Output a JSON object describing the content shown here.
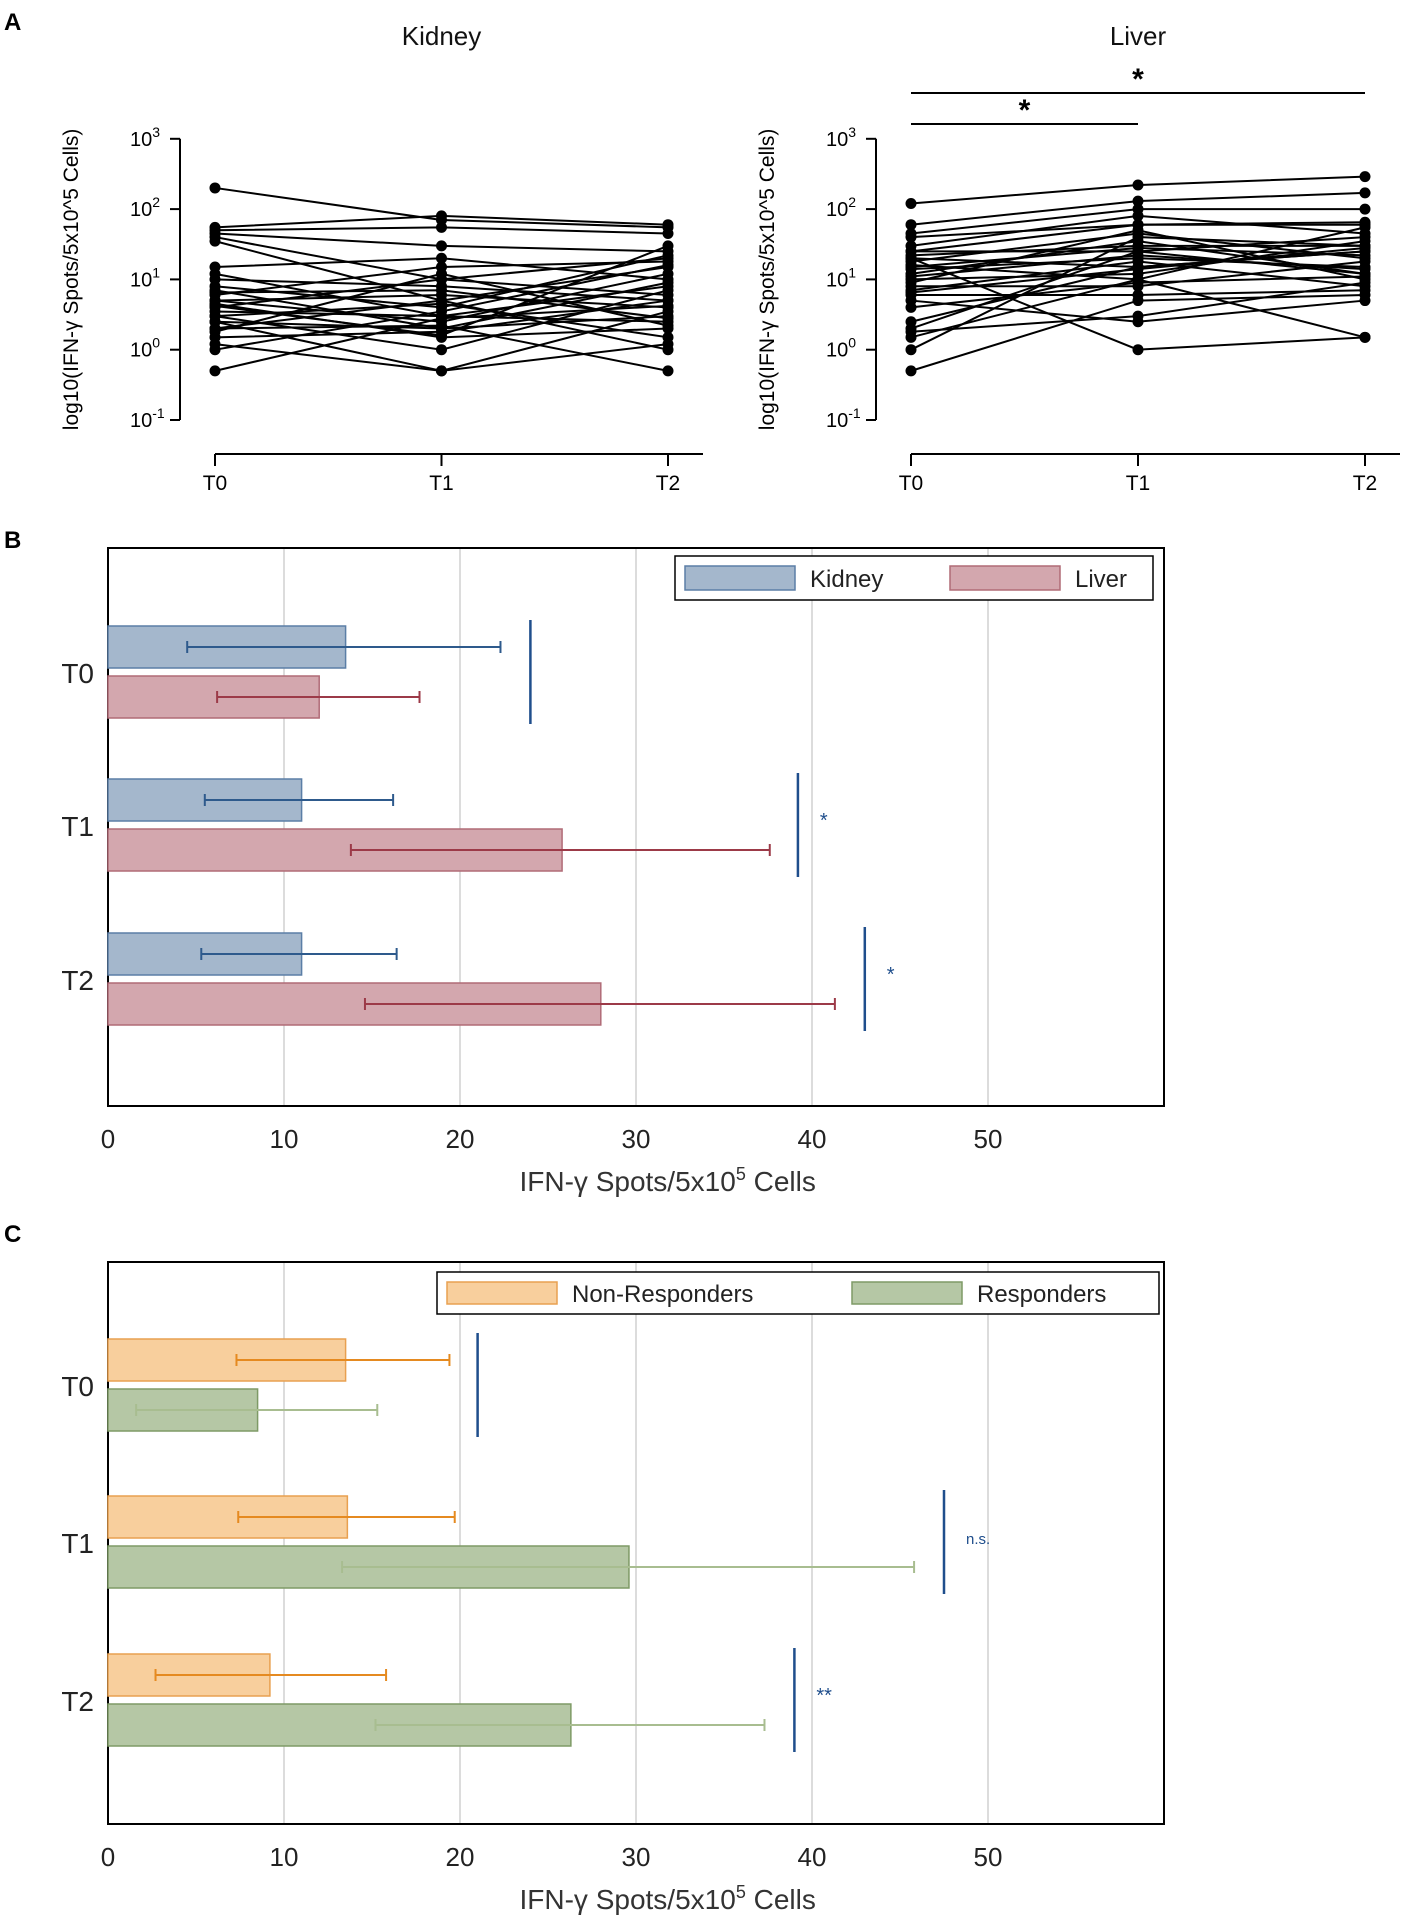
{
  "panel_labels": [
    "A",
    "B",
    "C"
  ],
  "chart_data": [
    {
      "panel": "A",
      "type": "line",
      "title": "Kidney",
      "xlabel": "",
      "ylabel": "log10(IFN-γ Spots/5x10^5 Cells)",
      "yscale": "log",
      "ylim": [
        0.1,
        1000
      ],
      "yticks": [
        {
          "base": "10",
          "exp": "3",
          "value": 1000
        },
        {
          "base": "10",
          "exp": "2",
          "value": 100
        },
        {
          "base": "10",
          "exp": "1",
          "value": 10
        },
        {
          "base": "10",
          "exp": "0",
          "value": 1
        },
        {
          "base": "10",
          "exp": "-1",
          "value": 0.1
        }
      ],
      "categories": [
        "T0",
        "T1",
        "T2"
      ],
      "series": [
        [
          200,
          70,
          55
        ],
        [
          55,
          80,
          60
        ],
        [
          50,
          55,
          45
        ],
        [
          45,
          30,
          25
        ],
        [
          40,
          10,
          20
        ],
        [
          35,
          5,
          15
        ],
        [
          15,
          20,
          10
        ],
        [
          12,
          3,
          8
        ],
        [
          10,
          8,
          5
        ],
        [
          8,
          4,
          22
        ],
        [
          7,
          2,
          3
        ],
        [
          6,
          15,
          18
        ],
        [
          5,
          6,
          4
        ],
        [
          5,
          2.5,
          12
        ],
        [
          4.5,
          1.5,
          2
        ],
        [
          4,
          10,
          6
        ],
        [
          3.5,
          3,
          2.5
        ],
        [
          3,
          1,
          7
        ],
        [
          3,
          4.5,
          1.5
        ],
        [
          2.5,
          2,
          9
        ],
        [
          2.5,
          0.5,
          3.5
        ],
        [
          2,
          5,
          1
        ],
        [
          2,
          2.2,
          0.5
        ],
        [
          1.8,
          12,
          2.2
        ],
        [
          1.5,
          1.8,
          5
        ],
        [
          1.2,
          0.5,
          1.2
        ],
        [
          1,
          3.5,
          16
        ],
        [
          0.5,
          2.8,
          4.2
        ],
        [
          6.5,
          7,
          2.8
        ],
        [
          4.2,
          1.6,
          30
        ]
      ],
      "significance": []
    },
    {
      "panel": "A",
      "type": "line",
      "title": "Liver",
      "xlabel": "",
      "ylabel": "log10(IFN-γ Spots/5x10^5 Cells)",
      "yscale": "log",
      "ylim": [
        0.1,
        1000
      ],
      "yticks": [
        {
          "base": "10",
          "exp": "3",
          "value": 1000
        },
        {
          "base": "10",
          "exp": "2",
          "value": 100
        },
        {
          "base": "10",
          "exp": "1",
          "value": 10
        },
        {
          "base": "10",
          "exp": "0",
          "value": 1
        },
        {
          "base": "10",
          "exp": "-1",
          "value": 0.1
        }
      ],
      "categories": [
        "T0",
        "T1",
        "T2"
      ],
      "series": [
        [
          120,
          220,
          290
        ],
        [
          60,
          130,
          170
        ],
        [
          45,
          100,
          100
        ],
        [
          40,
          60,
          60
        ],
        [
          30,
          80,
          45
        ],
        [
          25,
          25,
          40
        ],
        [
          22,
          30,
          30
        ],
        [
          20,
          15,
          25
        ],
        [
          18,
          45,
          20
        ],
        [
          16,
          10,
          55
        ],
        [
          14,
          20,
          15
        ],
        [
          12,
          35,
          12
        ],
        [
          10,
          12,
          35
        ],
        [
          9,
          50,
          10
        ],
        [
          8,
          8,
          18
        ],
        [
          7,
          18,
          8
        ],
        [
          6,
          6,
          7
        ],
        [
          2.5,
          15,
          25
        ],
        [
          2,
          25,
          12
        ],
        [
          1.5,
          10,
          1.5
        ],
        [
          1,
          40,
          30
        ],
        [
          0.5,
          5,
          6
        ],
        [
          1.8,
          3,
          9
        ],
        [
          5,
          2.5,
          5
        ],
        [
          20,
          1,
          1.5
        ],
        [
          25,
          60,
          65
        ],
        [
          15,
          28,
          22
        ],
        [
          11,
          22,
          14
        ],
        [
          6.5,
          14,
          28
        ],
        [
          4,
          9,
          11
        ]
      ],
      "significance": [
        {
          "from": "T0",
          "to": "T1",
          "label": "*"
        },
        {
          "from": "T0",
          "to": "T2",
          "label": "*"
        }
      ]
    },
    {
      "panel": "B",
      "type": "bar",
      "orientation": "horizontal",
      "title": "",
      "xlabel": "IFN-γ Spots/5x10",
      "xlabel_sup": "5",
      "xlabel_suffix": " Cells",
      "xlim": [
        0,
        60
      ],
      "xticks": [
        "0",
        "10",
        "20",
        "30",
        "40",
        "50"
      ],
      "categories": [
        "T0",
        "T1",
        "T2"
      ],
      "series": [
        {
          "name": "Kidney",
          "fill": "#a4b7cc",
          "stroke": "#5b7ea6",
          "err_color": "#2e5a8c",
          "values": [
            13.5,
            11,
            11
          ],
          "err_low": [
            4.5,
            5.5,
            5.3
          ],
          "err_high": [
            22.3,
            16.2,
            16.4
          ]
        },
        {
          "name": "Liver",
          "fill": "#d3a7ae",
          "stroke": "#b06b77",
          "err_color": "#9c3a48",
          "values": [
            12,
            25.8,
            28
          ],
          "err_low": [
            6.2,
            13.8,
            14.6
          ],
          "err_high": [
            17.7,
            37.6,
            41.3
          ]
        }
      ],
      "significance": [
        {
          "category": "T0",
          "x": 24,
          "label": ""
        },
        {
          "category": "T1",
          "x": 39.2,
          "label": "*"
        },
        {
          "category": "T2",
          "x": 43,
          "label": "*"
        }
      ],
      "legend_position": "top-right",
      "grid": true
    },
    {
      "panel": "C",
      "type": "bar",
      "orientation": "horizontal",
      "title": "",
      "xlabel": "IFN-γ Spots/5x10",
      "xlabel_sup": "5",
      "xlabel_suffix": " Cells",
      "xlim": [
        0,
        60
      ],
      "xticks": [
        "0",
        "10",
        "20",
        "30",
        "40",
        "50"
      ],
      "categories": [
        "T0",
        "T1",
        "T2"
      ],
      "series": [
        {
          "name": "Non-Responders",
          "fill": "#f8cf9d",
          "stroke": "#e8a050",
          "err_color": "#e58a20",
          "values": [
            13.5,
            13.6,
            9.2
          ],
          "err_low": [
            7.3,
            7.4,
            2.7
          ],
          "err_high": [
            19.4,
            19.7,
            15.8
          ]
        },
        {
          "name": "Responders",
          "fill": "#b5c7a5",
          "stroke": "#7e9a66",
          "err_color": "#a8bd90",
          "values": [
            8.5,
            29.6,
            26.3
          ],
          "err_low": [
            1.6,
            13.3,
            15.2
          ],
          "err_high": [
            15.3,
            45.8,
            37.3
          ]
        }
      ],
      "significance": [
        {
          "category": "T0",
          "x": 21,
          "label": ""
        },
        {
          "category": "T1",
          "x": 47.5,
          "label": "n.s."
        },
        {
          "category": "T2",
          "x": 39,
          "label": "**"
        }
      ],
      "legend_position": "top-right",
      "grid": true
    }
  ]
}
